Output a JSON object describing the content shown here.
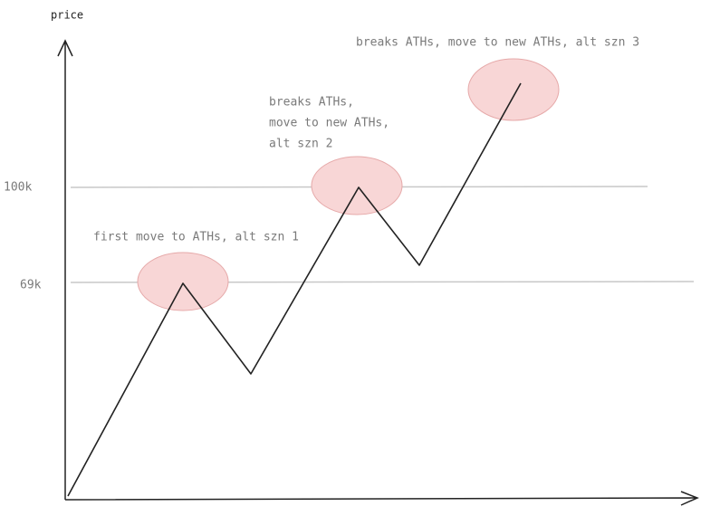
{
  "axis": {
    "y_label": "price"
  },
  "levels": [
    {
      "label": "100k"
    },
    {
      "label": "69k"
    }
  ],
  "annotations": [
    {
      "lines": [
        "first move to ATHs, alt szn 1"
      ]
    },
    {
      "lines": [
        "breaks ATHs,",
        "move to new ATHs,",
        "alt szn 2"
      ]
    },
    {
      "lines": [
        "breaks ATHs, move to new ATHs, alt szn 3"
      ]
    }
  ]
}
